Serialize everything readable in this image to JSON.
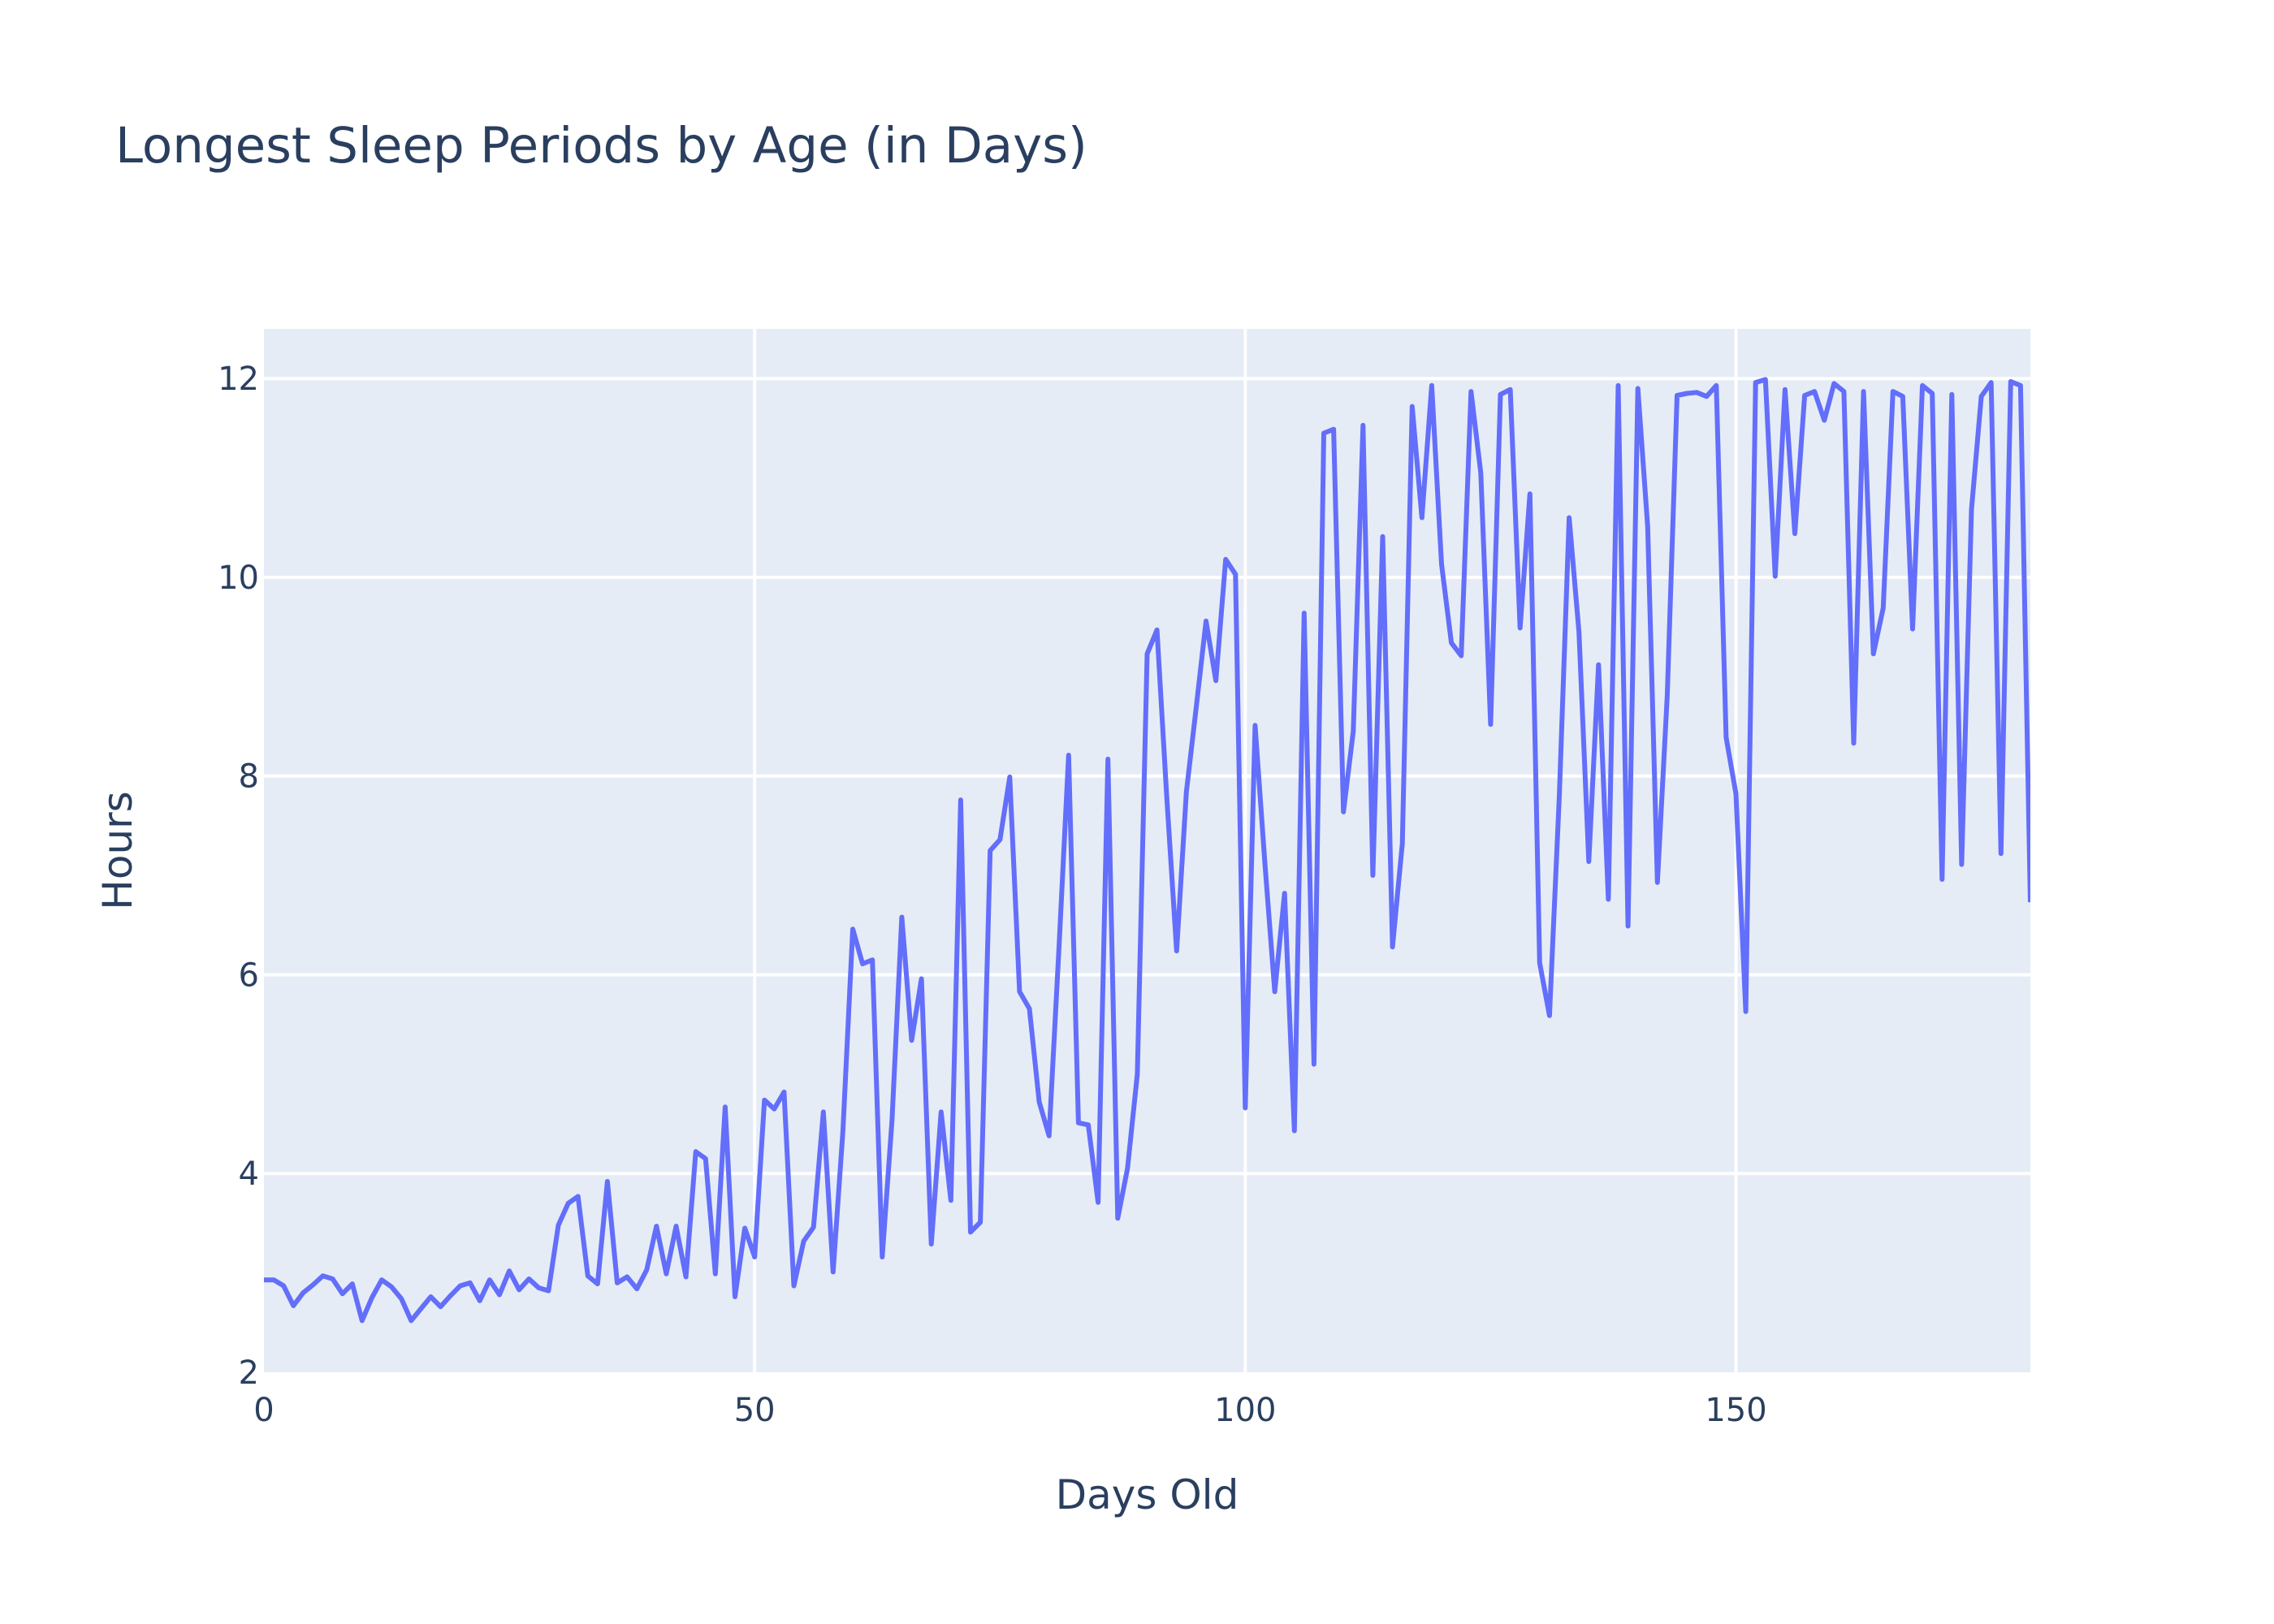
{
  "chart_data": {
    "type": "line",
    "title": "Longest Sleep Periods by Age (in Days)",
    "xlabel": "Days Old",
    "ylabel": "Hours",
    "xlim": [
      0,
      180
    ],
    "ylim": [
      2,
      12.5
    ],
    "x_ticks": [
      0,
      50,
      100,
      150
    ],
    "y_ticks": [
      2,
      4,
      6,
      8,
      10,
      12
    ],
    "grid": true,
    "colors": {
      "line": "#636efa",
      "plot_bg": "#e5ecf6",
      "grid": "#ffffff",
      "text": "#2a3f5f"
    },
    "series": [
      {
        "x": [
          0,
          1,
          2,
          3,
          4,
          5,
          6,
          7,
          8,
          9,
          10,
          11,
          12,
          13,
          14,
          15,
          16,
          17,
          18,
          19,
          20,
          21,
          22,
          23,
          24,
          25,
          26,
          27,
          28,
          29,
          30,
          31,
          32,
          33,
          34,
          35,
          36,
          37,
          38,
          39,
          40,
          41,
          42,
          43,
          44,
          45,
          46,
          47,
          48,
          49,
          50,
          51,
          52,
          53,
          54,
          55,
          56,
          57,
          58,
          59,
          60,
          61,
          62,
          63,
          64,
          65,
          66,
          67,
          68,
          69,
          70,
          71,
          72,
          73,
          74,
          75,
          76,
          77,
          78,
          79,
          80,
          81,
          82,
          83,
          84,
          85,
          86,
          87,
          88,
          89,
          90,
          91,
          92,
          93,
          94,
          95,
          96,
          97,
          98,
          99,
          100,
          101,
          102,
          103,
          104,
          105,
          106,
          107,
          108,
          109,
          110,
          111,
          112,
          113,
          114,
          115,
          116,
          117,
          118,
          119,
          120,
          121,
          122,
          123,
          124,
          125,
          126,
          127,
          128,
          129,
          130,
          131,
          132,
          133,
          134,
          135,
          136,
          137,
          138,
          139,
          140,
          141,
          142,
          143,
          144,
          145,
          146,
          147,
          148,
          149,
          150,
          151,
          152,
          153,
          154,
          155,
          156,
          157,
          158,
          159,
          160,
          161,
          162,
          163,
          164,
          165,
          166,
          167,
          168,
          169,
          170,
          171,
          172,
          173,
          174,
          175,
          176,
          177,
          178,
          179,
          180
        ],
        "y": [
          2.93,
          2.93,
          2.87,
          2.67,
          2.8,
          2.88,
          2.97,
          2.94,
          2.79,
          2.89,
          2.52,
          2.75,
          2.93,
          2.86,
          2.74,
          2.52,
          2.64,
          2.76,
          2.66,
          2.77,
          2.87,
          2.9,
          2.72,
          2.93,
          2.78,
          3.02,
          2.83,
          2.94,
          2.85,
          2.82,
          3.48,
          3.7,
          3.77,
          2.97,
          2.89,
          3.92,
          2.9,
          2.96,
          2.84,
          3.03,
          3.47,
          2.99,
          3.47,
          2.96,
          4.22,
          4.15,
          2.99,
          4.67,
          2.76,
          3.45,
          3.16,
          4.74,
          4.65,
          4.82,
          2.87,
          3.32,
          3.46,
          4.62,
          3.01,
          4.43,
          6.46,
          6.11,
          6.15,
          3.16,
          4.53,
          6.58,
          5.34,
          5.96,
          3.29,
          4.62,
          3.73,
          7.76,
          3.41,
          3.51,
          7.25,
          7.36,
          7.99,
          5.83,
          5.66,
          4.72,
          4.38,
          6.25,
          8.21,
          4.51,
          4.49,
          3.71,
          8.17,
          3.55,
          4.05,
          5.0,
          9.23,
          9.47,
          7.78,
          6.24,
          7.84,
          8.69,
          9.56,
          8.96,
          10.18,
          10.03,
          4.66,
          8.51,
          7.12,
          5.83,
          6.82,
          4.43,
          9.64,
          5.1,
          11.45,
          11.49,
          7.64,
          8.45,
          11.53,
          7.0,
          10.41,
          6.28,
          7.32,
          11.72,
          10.6,
          11.93,
          10.13,
          9.34,
          9.21,
          11.87,
          11.05,
          8.52,
          11.84,
          11.89,
          9.49,
          10.84,
          6.12,
          5.59,
          7.8,
          10.6,
          9.45,
          7.14,
          9.12,
          6.76,
          11.93,
          6.49,
          11.9,
          10.51,
          6.93,
          8.81,
          11.83,
          11.85,
          11.86,
          11.82,
          11.93,
          8.39,
          7.82,
          5.63,
          11.96,
          11.99,
          10.01,
          11.89,
          10.44,
          11.83,
          11.87,
          11.58,
          11.95,
          11.87,
          8.33,
          11.87,
          9.23,
          9.69,
          11.87,
          11.82,
          9.48,
          11.93,
          11.85,
          6.96,
          11.84,
          7.11,
          10.68,
          11.82,
          11.96,
          7.22,
          11.97,
          11.93,
          6.73
        ],
        "width": 6
      }
    ]
  }
}
